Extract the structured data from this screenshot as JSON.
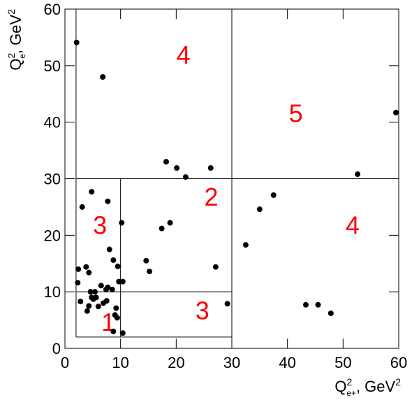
{
  "chart_data": {
    "type": "scatter",
    "x_label": {
      "base": "Q",
      "sup": "2",
      "sub": "e+",
      "unit": ", GeV",
      "unit_sup": "2"
    },
    "y_label": {
      "base": "Q",
      "sup": "2",
      "sub": "e",
      "unit": ", GeV",
      "unit_sup": "2"
    },
    "xlim": [
      0,
      60
    ],
    "ylim": [
      0,
      60
    ],
    "xticks": [
      0,
      10,
      20,
      30,
      40,
      50,
      60
    ],
    "yticks": [
      0,
      10,
      20,
      30,
      40,
      50,
      60
    ],
    "color": "#000000",
    "x": [
      2.1,
      6.8,
      18.2,
      20.1,
      21.7,
      26.2,
      52.6,
      59.5,
      3.1,
      4.8,
      7.7,
      10.2,
      17.4,
      18.9,
      27.1,
      29.2,
      32.5,
      35.0,
      37.5,
      43.3,
      45.5,
      47.8,
      14.6,
      15.2,
      2.4,
      2.3,
      2.8,
      3.8,
      4.3,
      4.0,
      4.3,
      4.8,
      4.6,
      5.4,
      5.1,
      5.6,
      6.0,
      6.5,
      6.9,
      7.5,
      7.4,
      8.0,
      8.7,
      8.5,
      9.5,
      9.2,
      9.0,
      9.4,
      9.7,
      10.4,
      8.7,
      10.4,
      7.7
    ],
    "y": [
      54.1,
      48.0,
      33.0,
      31.9,
      30.3,
      31.9,
      30.8,
      41.7,
      25.0,
      27.7,
      26.0,
      22.2,
      21.2,
      22.2,
      14.4,
      7.9,
      18.3,
      24.6,
      27.1,
      7.7,
      7.7,
      6.2,
      15.5,
      13.6,
      14.0,
      11.6,
      8.3,
      14.4,
      13.4,
      6.6,
      7.5,
      9.0,
      10.0,
      10.0,
      8.7,
      9.0,
      7.4,
      11.1,
      8.0,
      8.4,
      10.4,
      17.5,
      15.6,
      10.4,
      14.5,
      7.1,
      5.9,
      5.4,
      11.8,
      11.8,
      3.0,
      2.7,
      10.8
    ],
    "lines": [
      [
        2,
        2,
        2,
        60
      ],
      [
        2,
        2,
        30,
        2
      ],
      [
        2,
        10,
        30,
        10
      ],
      [
        10,
        2,
        10,
        30
      ],
      [
        2,
        30,
        60,
        30
      ],
      [
        30,
        0,
        30,
        60
      ]
    ],
    "annotations": [
      {
        "text": "4",
        "x": 21.3,
        "y": 51.5
      },
      {
        "text": "5",
        "x": 41.5,
        "y": 41.2
      },
      {
        "text": "2",
        "x": 26.3,
        "y": 26.4
      },
      {
        "text": "3",
        "x": 6.3,
        "y": 21.4
      },
      {
        "text": "4",
        "x": 51.7,
        "y": 21.4
      },
      {
        "text": "3",
        "x": 24.7,
        "y": 6.3
      },
      {
        "text": "1",
        "x": 7.8,
        "y": 4.3
      }
    ]
  }
}
